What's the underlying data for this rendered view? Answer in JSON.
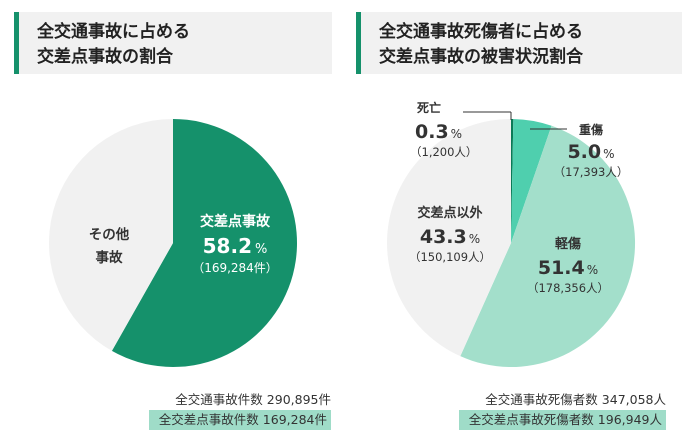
{
  "chart_data": [
    {
      "type": "pie",
      "title": [
        "全交通事故に占める",
        "交差点事故の割合"
      ],
      "slices": [
        {
          "name": "交差点事故",
          "percent": "58.2",
          "value": 58.2,
          "count": "（169,284件）",
          "color": "#15916b"
        },
        {
          "name": [
            "その他",
            "事故"
          ],
          "value": 41.8,
          "color": "#f1f1f1"
        }
      ],
      "totals": [
        {
          "label": "全交通事故件数",
          "value": "290,895件",
          "highlight": false
        },
        {
          "label": "全交差点事故件数",
          "value": "169,284件",
          "highlight": true
        }
      ]
    },
    {
      "type": "pie",
      "title": [
        "全交通事故死傷者に占める",
        "交差点事故の被害状況割合"
      ],
      "slices": [
        {
          "name": "死亡",
          "percent": "0.3",
          "value": 0.3,
          "count": "（1,200人）",
          "color": "#0b7a57"
        },
        {
          "name": "重傷",
          "percent": "5.0",
          "value": 5.0,
          "count": "（17,393人）",
          "color": "#4fcfae"
        },
        {
          "name": "軽傷",
          "percent": "51.4",
          "value": 51.4,
          "count": "（178,356人）",
          "color": "#a3dfcb"
        },
        {
          "name": "交差点以外",
          "percent": "43.3",
          "value": 43.3,
          "count": "（150,109人）",
          "color": "#f1f1f1"
        }
      ],
      "totals": [
        {
          "label": "全交通事故死傷者数",
          "value": "347,058人",
          "highlight": false
        },
        {
          "label": "全交差点事故死傷者数",
          "value": "196,949人",
          "highlight": true
        }
      ]
    }
  ],
  "percent_sign": "%"
}
